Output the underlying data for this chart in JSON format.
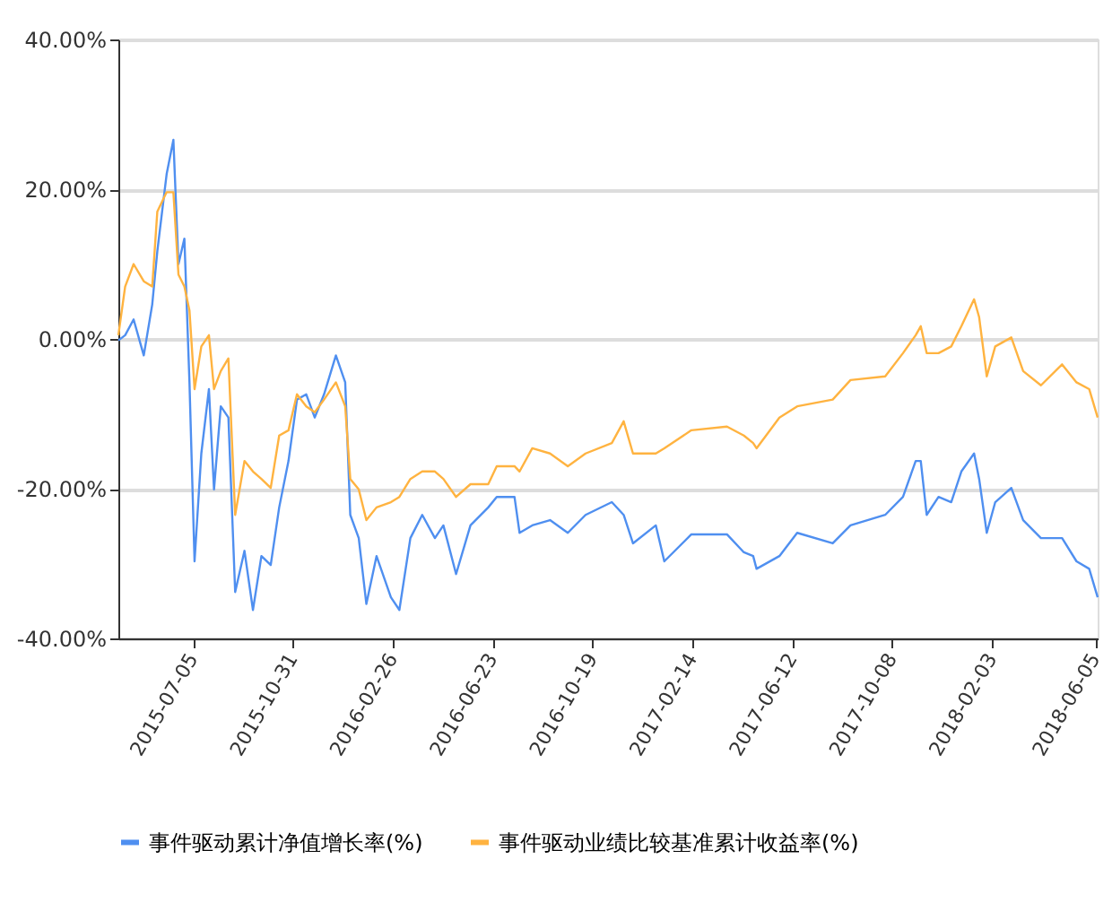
{
  "chart_data": {
    "type": "line",
    "x": [
      "2015-04-08",
      "2015-04-16",
      "2015-04-26",
      "2015-05-08",
      "2015-05-18",
      "2015-05-24",
      "2015-06-04",
      "2015-06-12",
      "2015-06-18",
      "2015-06-25",
      "2015-07-01",
      "2015-07-07",
      "2015-07-15",
      "2015-07-24",
      "2015-07-30",
      "2015-08-07",
      "2015-08-16",
      "2015-08-24",
      "2015-09-04",
      "2015-09-14",
      "2015-09-24",
      "2015-10-05",
      "2015-10-15",
      "2015-10-26",
      "2015-11-05",
      "2015-11-16",
      "2015-11-26",
      "2015-12-07",
      "2015-12-21",
      "2016-01-01",
      "2016-01-07",
      "2016-01-17",
      "2016-01-26",
      "2016-02-07",
      "2016-02-24",
      "2016-03-05",
      "2016-03-18",
      "2016-04-01",
      "2016-04-16",
      "2016-04-26",
      "2016-05-11",
      "2016-05-28",
      "2016-06-18",
      "2016-06-28",
      "2016-07-19",
      "2016-07-25",
      "2016-08-09",
      "2016-08-30",
      "2016-09-20",
      "2016-10-11",
      "2016-11-11",
      "2016-11-25",
      "2016-12-06",
      "2017-01-02",
      "2017-01-12",
      "2017-02-13",
      "2017-03-27",
      "2017-04-16",
      "2017-04-27",
      "2017-05-01",
      "2017-05-28",
      "2017-06-18",
      "2017-07-30",
      "2017-08-20",
      "2017-09-30",
      "2017-10-21",
      "2017-11-05",
      "2017-11-11",
      "2017-11-18",
      "2017-12-02",
      "2017-12-17",
      "2017-12-29",
      "2018-01-13",
      "2018-01-19",
      "2018-01-28",
      "2018-02-07",
      "2018-02-26",
      "2018-03-12",
      "2018-04-02",
      "2018-04-27",
      "2018-05-14",
      "2018-05-29",
      "2018-06-08"
    ],
    "series": [
      {
        "name": "事件驱动累计净值增长率(%)",
        "color": "#4f8ff0",
        "values": [
          -0.2,
          0.5,
          2.6,
          -2.2,
          4.6,
          11.7,
          22,
          26.6,
          10,
          13.4,
          -5.8,
          -29.7,
          -15.3,
          -6.7,
          -20.1,
          -9,
          -10.5,
          -33.8,
          -28.3,
          -36.2,
          -29,
          -30.2,
          -22.5,
          -16.3,
          -8.1,
          -7.4,
          -10.5,
          -7.4,
          -2.2,
          -5.8,
          -23.5,
          -26.6,
          -35.4,
          -29,
          -34.5,
          -36.2,
          -26.6,
          -23.5,
          -26.6,
          -24.9,
          -31.4,
          -24.9,
          -22.5,
          -21.1,
          -21.1,
          -25.9,
          -24.9,
          -24.2,
          -25.9,
          -23.5,
          -21.8,
          -23.5,
          -27.3,
          -24.9,
          -29.7,
          -26.1,
          -26.1,
          -28.5,
          -29,
          -30.7,
          -29,
          -25.9,
          -27.3,
          -24.9,
          -23.5,
          -21.1,
          -16.3,
          -16.3,
          -23.5,
          -21.1,
          -21.8,
          -17.7,
          -15.3,
          -18.7,
          -25.9,
          -21.8,
          -19.9,
          -24.2,
          -26.6,
          -26.6,
          -29.7,
          -30.7,
          -34.5
        ]
      },
      {
        "name": "事件驱动业绩比较基准累计收益率(%)",
        "color": "#ffb340",
        "values": [
          0.5,
          7,
          10,
          7.7,
          7,
          17,
          19.6,
          19.6,
          8.6,
          7,
          3.8,
          -6.7,
          -1,
          0.5,
          -6.7,
          -4.3,
          -2.6,
          -23.5,
          -16.3,
          -17.7,
          -18.7,
          -19.9,
          -12.9,
          -12.2,
          -7.4,
          -9,
          -9.8,
          -8.1,
          -5.8,
          -9,
          -18.7,
          -20.1,
          -24.2,
          -22.5,
          -21.8,
          -21.1,
          -18.7,
          -17.7,
          -17.7,
          -18.7,
          -21.1,
          -19.4,
          -19.4,
          -17,
          -17,
          -17.7,
          -14.6,
          -15.3,
          -17,
          -15.3,
          -13.9,
          -11,
          -15.3,
          -15.3,
          -14.6,
          -12.2,
          -11.7,
          -12.9,
          -13.9,
          -14.6,
          -10.5,
          -9,
          -8.1,
          -5.5,
          -5,
          -1.9,
          0.5,
          1.7,
          -1.9,
          -1.9,
          -1,
          1.7,
          5.3,
          2.9,
          -5,
          -1,
          0.2,
          -4.3,
          -6.2,
          -3.4,
          -5.8,
          -6.7,
          -10.5
        ]
      }
    ],
    "xlim": [
      "2015-04-08",
      "2018-06-08"
    ],
    "xticks": [
      "2015-07-05",
      "2015-10-31",
      "2016-02-26",
      "2016-06-23",
      "2016-10-19",
      "2017-02-14",
      "2017-06-12",
      "2017-10-08",
      "2018-02-03",
      "2018-06-05"
    ],
    "ylim": [
      -40,
      40
    ],
    "yticks": [
      {
        "value": -40,
        "label": "-40.00%"
      },
      {
        "value": -20,
        "label": "-20.00%"
      },
      {
        "value": 0,
        "label": "0.00%"
      },
      {
        "value": 20,
        "label": "20.00%"
      },
      {
        "value": 40,
        "label": "40.00%"
      }
    ],
    "grid": "y",
    "legend": "bottom",
    "marker": "none",
    "line_style": "solid"
  }
}
